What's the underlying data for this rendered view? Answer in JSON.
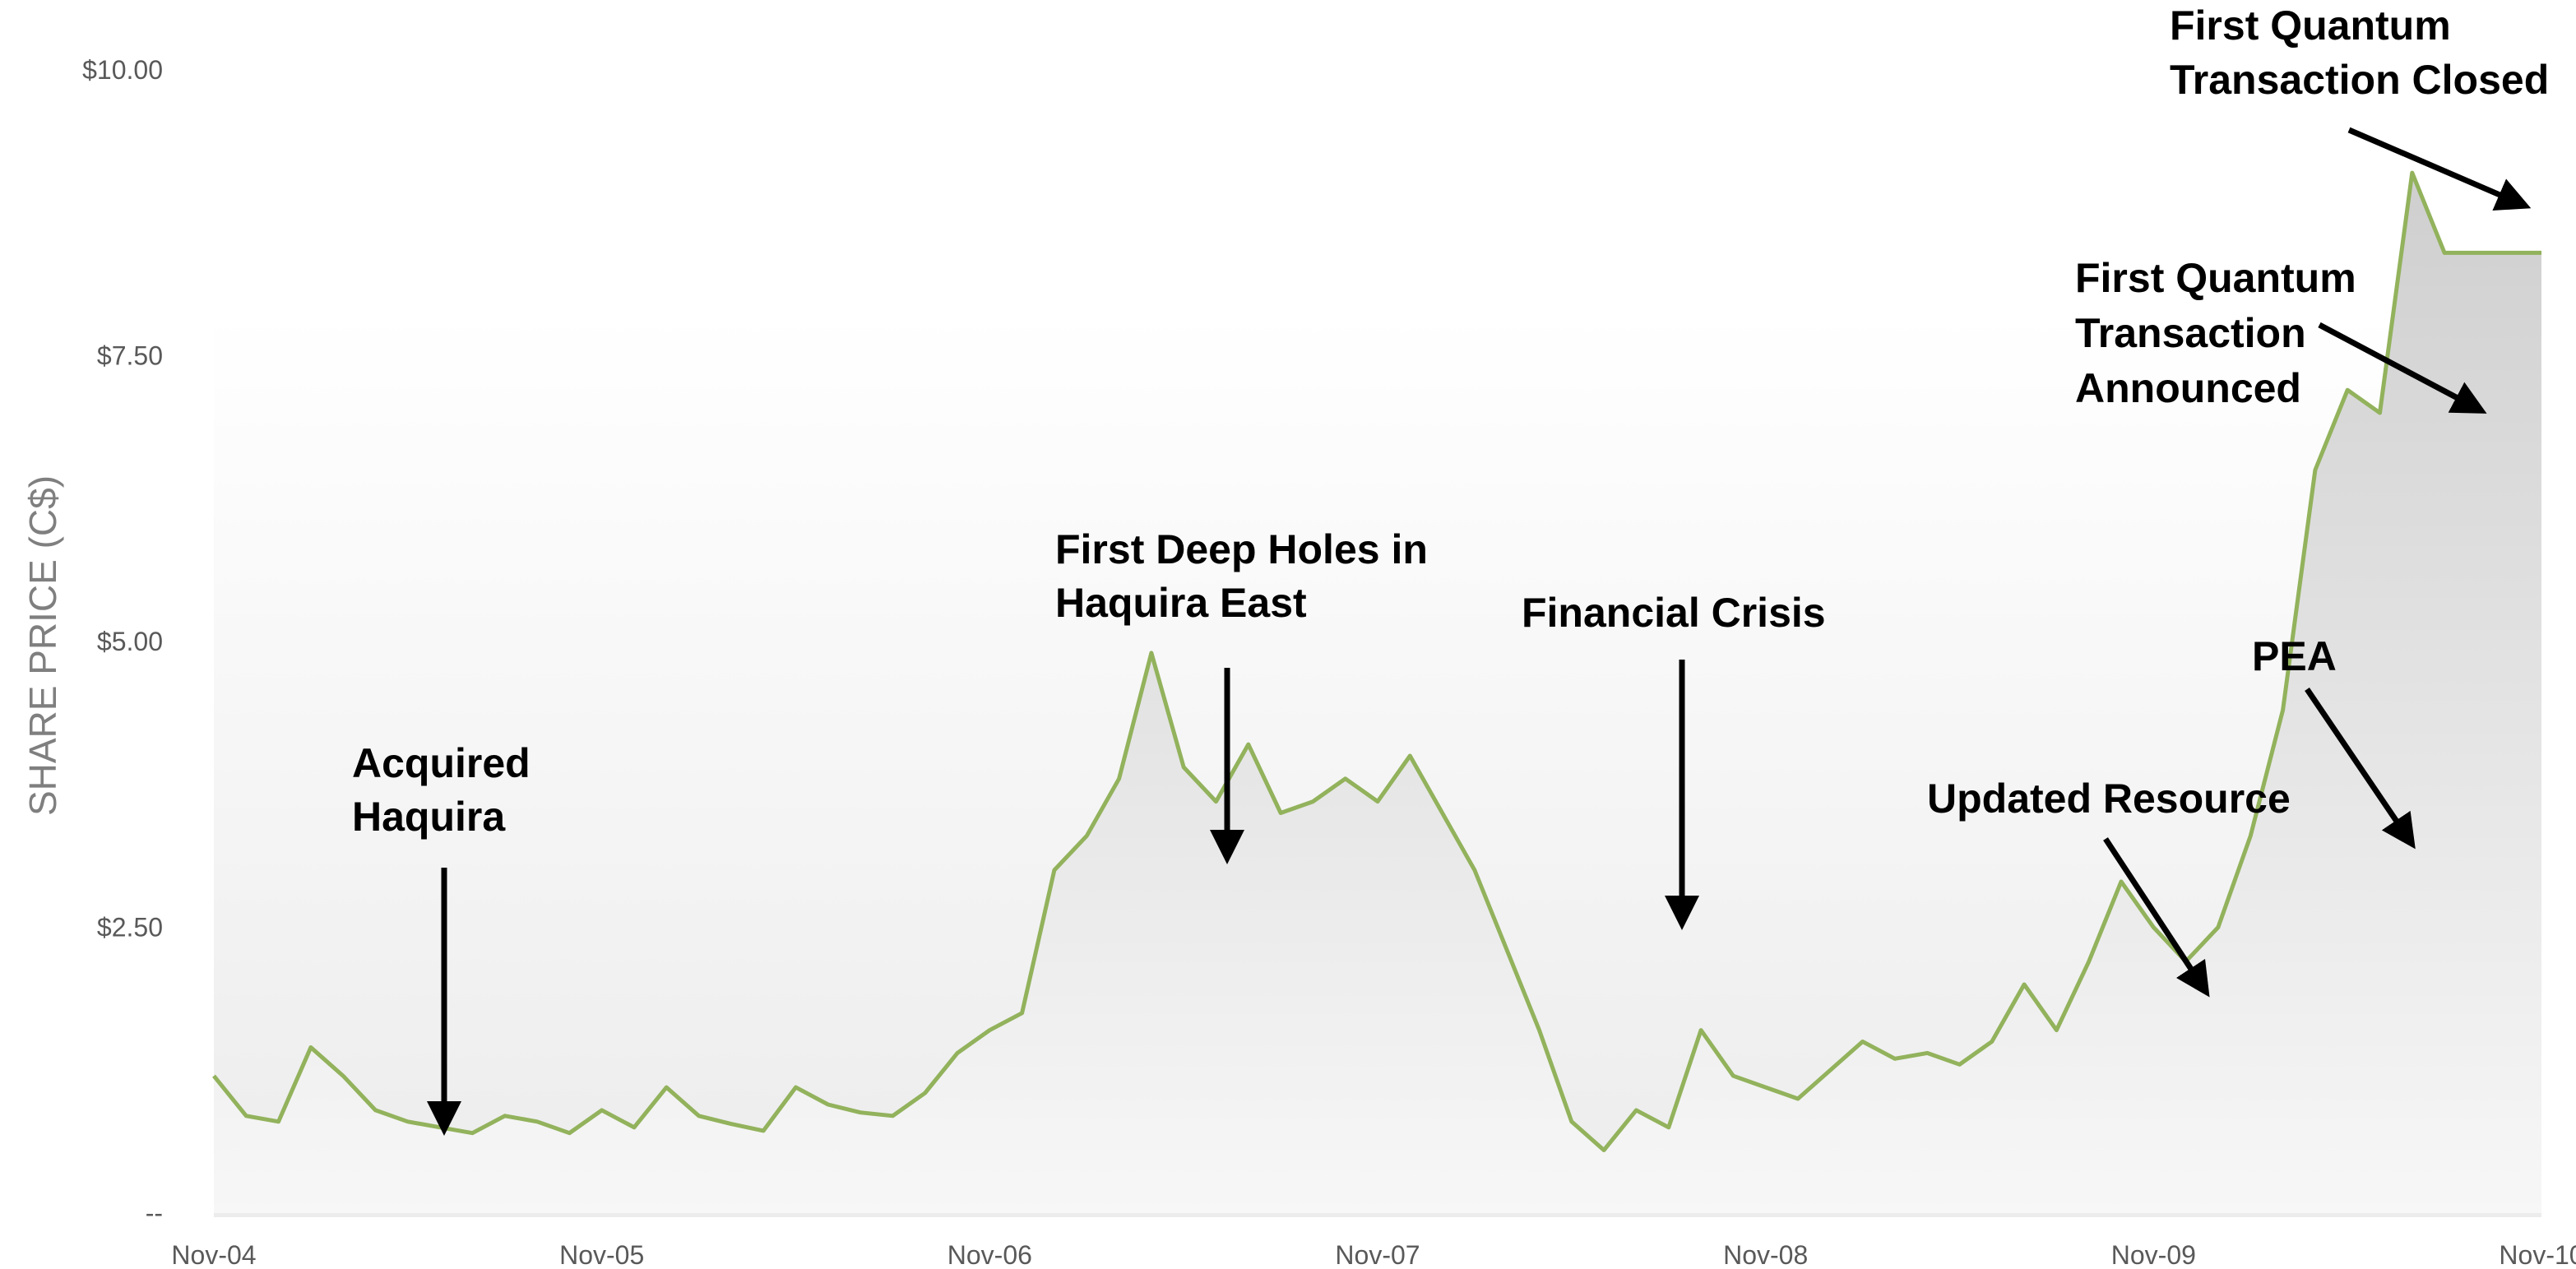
{
  "chart_data": {
    "type": "area",
    "title": "",
    "xlabel": "",
    "ylabel": "SHARE PRICE (C$)",
    "x_ticks": [
      "Nov-04",
      "Nov-05",
      "Nov-06",
      "Nov-07",
      "Nov-08",
      "Nov-09",
      "Nov-10"
    ],
    "y_ticks": [
      "--",
      "$2.50",
      "$5.00",
      "$7.50",
      "$10.00"
    ],
    "ylim": [
      0,
      10
    ],
    "xlim": [
      "2004-11",
      "2010-11"
    ],
    "grid": false,
    "series": [
      {
        "x": [
          "2004-11",
          "2004-12",
          "2005-01",
          "2005-02",
          "2005-03",
          "2005-04",
          "2005-05",
          "2005-06",
          "2005-07",
          "2005-08",
          "2005-09",
          "2005-10",
          "2005-11",
          "2005-12",
          "2006-01",
          "2006-02",
          "2006-03",
          "2006-04",
          "2006-05",
          "2006-06",
          "2006-07",
          "2006-08",
          "2006-09",
          "2006-10",
          "2006-11",
          "2006-12",
          "2007-01",
          "2007-02",
          "2007-03",
          "2007-04",
          "2007-05",
          "2007-06",
          "2007-07",
          "2007-08",
          "2007-09",
          "2007-10",
          "2007-11",
          "2007-12",
          "2008-01",
          "2008-02",
          "2008-03",
          "2008-04",
          "2008-05",
          "2008-06",
          "2008-07",
          "2008-08",
          "2008-09",
          "2008-10",
          "2008-11",
          "2008-12",
          "2009-01",
          "2009-02",
          "2009-03",
          "2009-04",
          "2009-05",
          "2009-06",
          "2009-07",
          "2009-08",
          "2009-09",
          "2009-10",
          "2009-11",
          "2009-12",
          "2010-01",
          "2010-02",
          "2010-03",
          "2010-04",
          "2010-05",
          "2010-06",
          "2010-07",
          "2010-08",
          "2010-09",
          "2010-10",
          "2010-11"
        ],
        "y": [
          1.2,
          0.85,
          0.8,
          1.45,
          1.2,
          0.9,
          0.8,
          0.75,
          0.7,
          0.85,
          0.8,
          0.7,
          0.9,
          0.75,
          1.1,
          0.85,
          0.78,
          0.72,
          1.1,
          0.95,
          0.88,
          0.85,
          1.05,
          1.4,
          1.6,
          1.75,
          3.0,
          3.3,
          3.8,
          4.9,
          3.9,
          3.6,
          4.1,
          3.5,
          3.6,
          3.8,
          3.6,
          4.0,
          3.5,
          3.0,
          2.3,
          1.6,
          0.8,
          0.55,
          0.9,
          0.75,
          1.6,
          1.2,
          1.1,
          1.0,
          1.25,
          1.5,
          1.35,
          1.4,
          1.3,
          1.5,
          2.0,
          1.6,
          2.2,
          2.9,
          2.5,
          2.2,
          2.5,
          3.3,
          4.4,
          6.5,
          7.2,
          7.0,
          9.1,
          8.4,
          8.4,
          8.4,
          8.4
        ],
        "y_display_note": ""
      }
    ],
    "line_color": "#92b25c",
    "fill_top_color": "#cfcfcf",
    "fill_bottom_color": "#f7f7f7",
    "annotations": [
      {
        "lines": [
          "Acquired",
          "Haquira"
        ],
        "at": "2005-07"
      },
      {
        "lines": [
          "First Deep Holes in",
          "Haquira East"
        ],
        "at": "2007-07"
      },
      {
        "lines": [
          "Financial Crisis"
        ],
        "at": "2008-08"
      },
      {
        "lines": [
          "Updated Resource"
        ],
        "at": "2010-02"
      },
      {
        "lines": [
          "PEA"
        ],
        "at": "2010-06"
      },
      {
        "lines": [
          "First Quantum",
          "Transaction",
          "Announced"
        ],
        "at": "2010-09"
      },
      {
        "lines": [
          "First Quantum",
          "Transaction Closed"
        ],
        "at": "2010-11"
      }
    ]
  }
}
